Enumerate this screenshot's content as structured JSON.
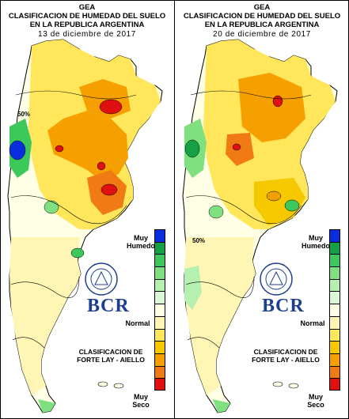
{
  "panels": [
    {
      "title_line1": "GEA",
      "title_line2": "CLASIFICACION DE HUMEDAD DEL SUELO",
      "title_line3": "EN LA REPUBLICA ARGENTINA",
      "date": "13 de diciembre de 2017",
      "legend_top": "Muy",
      "legend_top2": "Humedo",
      "legend_mid": "Normal",
      "legend_bottom": "Muy",
      "legend_bottom2": "Seco",
      "brand": "BCR",
      "method_line1": "CLASIFICACION DE",
      "method_line2": "FORTE LAY - AIELLO",
      "contour_label": "50%"
    },
    {
      "title_line1": "GEA",
      "title_line2": "CLASIFICACION DE HUMEDAD DEL SUELO",
      "title_line3": "EN LA REPUBLICA ARGENTINA",
      "date": "20 de diciembre de 2017",
      "legend_top": "Muy",
      "legend_top2": "Humedo",
      "legend_mid": "Normal",
      "legend_bottom": "Muy",
      "legend_bottom2": "Seco",
      "brand": "BCR",
      "method_line1": "CLASIFICACION DE",
      "method_line2": "FORTE LAY - AIELLO",
      "contour_label": "50%"
    }
  ],
  "legend_colors": [
    "#0a2de0",
    "#15a045",
    "#3cc85a",
    "#7ee07e",
    "#b6f0b0",
    "#dcf7d8",
    "#ffffe6",
    "#fff5b5",
    "#ffe65a",
    "#f5c800",
    "#f5a000",
    "#f07a14",
    "#e01010"
  ]
}
